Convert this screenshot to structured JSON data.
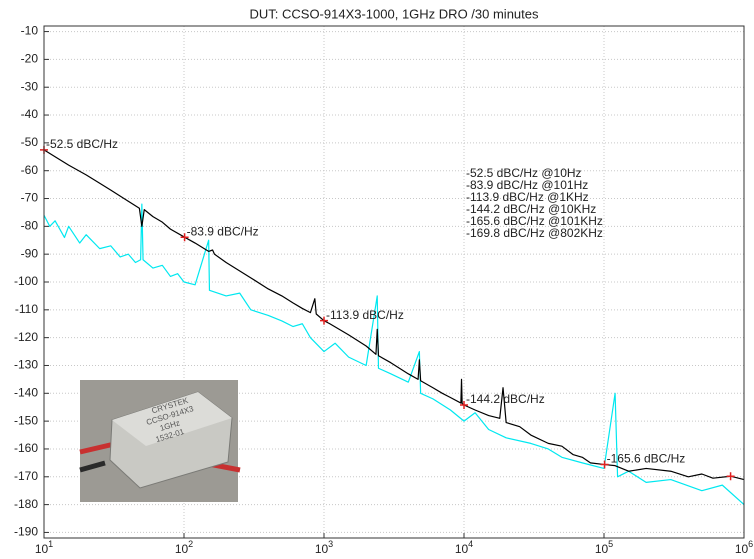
{
  "chart_data": {
    "type": "line",
    "title": "DUT: CCSO-914X3-1000, 1GHz DRO /30 minutes",
    "xscale": "log",
    "grid": true,
    "xlim": [
      10,
      1000000
    ],
    "ylim": [
      -192,
      -8
    ],
    "xticks": [
      {
        "value": 10,
        "label": "10",
        "exponent": "1"
      },
      {
        "value": 100,
        "label": "10",
        "exponent": "2"
      },
      {
        "value": 1000,
        "label": "10",
        "exponent": "3"
      },
      {
        "value": 10000,
        "label": "10",
        "exponent": "4"
      },
      {
        "value": 100000,
        "label": "10",
        "exponent": "5"
      },
      {
        "value": 1000000,
        "label": "10",
        "exponent": "6"
      }
    ],
    "yticks": [
      -10,
      -20,
      -30,
      -40,
      -50,
      -60,
      -70,
      -80,
      -90,
      -100,
      -110,
      -120,
      -130,
      -140,
      -150,
      -160,
      -170,
      -180,
      -190
    ],
    "series": [
      {
        "color": "#00e8f0",
        "x": [
          10,
          11,
          12,
          14,
          15,
          18,
          20,
          25,
          30,
          35,
          40,
          45,
          49,
          50,
          51,
          60,
          70,
          80,
          90,
          100,
          120,
          150,
          152,
          200,
          250,
          300,
          400,
          500,
          600,
          700,
          800,
          1000,
          1200,
          1500,
          2000,
          2400,
          2450,
          3000,
          4000,
          4800,
          4900,
          6000,
          8000,
          10000,
          12000,
          15000,
          20000,
          30000,
          40000,
          50000,
          70000,
          100000,
          120000,
          125000,
          150000,
          200000,
          300000,
          500000,
          700000,
          1000000
        ],
        "values": [
          -76,
          -80,
          -78,
          -84,
          -80,
          -86,
          -83,
          -88,
          -87,
          -91,
          -90,
          -93,
          -92,
          -72,
          -92,
          -95,
          -94,
          -98,
          -97,
          -100,
          -101,
          -85,
          -103,
          -105,
          -104,
          -110,
          -112,
          -114,
          -116,
          -115,
          -120,
          -125,
          -122,
          -127,
          -130,
          -105,
          -131,
          -133,
          -136,
          -125,
          -140,
          -142,
          -146,
          -150,
          -147,
          -153,
          -156,
          -158,
          -160,
          -163,
          -165,
          -167,
          -140,
          -170,
          -168,
          -172,
          -171,
          -175,
          -173,
          -180
        ]
      },
      {
        "color": "#000000",
        "x": [
          10,
          12,
          15,
          20,
          25,
          30,
          40,
          48,
          50,
          52,
          60,
          70,
          80,
          101,
          120,
          150,
          160,
          165,
          200,
          300,
          400,
          500,
          600,
          700,
          800,
          860,
          880,
          1000,
          1100,
          1500,
          2000,
          2350,
          2400,
          2450,
          3000,
          4000,
          4700,
          4800,
          4900,
          6000,
          7000,
          8000,
          9500,
          9600,
          9700,
          10000,
          12000,
          15000,
          18000,
          19000,
          20000,
          25000,
          30000,
          40000,
          50000,
          60000,
          70000,
          80000,
          101000,
          120000,
          150000,
          200000,
          300000,
          400000,
          500000,
          600000,
          802000,
          1000000
        ],
        "values": [
          -52.5,
          -55,
          -58,
          -61.5,
          -64.5,
          -67,
          -71,
          -73.5,
          -80,
          -74,
          -76.5,
          -78.5,
          -81,
          -83.9,
          -86,
          -89,
          -88.5,
          -90,
          -93,
          -98.5,
          -102.5,
          -105,
          -107.5,
          -109.5,
          -111,
          -106,
          -111.5,
          -113.9,
          -115,
          -119,
          -123,
          -126,
          -117,
          -126.5,
          -129,
          -133,
          -135,
          -128,
          -135.5,
          -138,
          -140,
          -141.5,
          -143.5,
          -135,
          -143.7,
          -144.2,
          -146,
          -148,
          -149,
          -138,
          -150.5,
          -152,
          -155,
          -158,
          -159,
          -162,
          -163,
          -165,
          -165.6,
          -166,
          -168,
          -167,
          -168,
          -170,
          -169,
          -170.5,
          -169.8,
          -171
        ]
      }
    ],
    "annotations": [
      {
        "x": 10,
        "y": -52.5,
        "label": "-52.5 dBC/Hz"
      },
      {
        "x": 101,
        "y": -83.9,
        "label": "-83.9 dBC/Hz"
      },
      {
        "x": 1000,
        "y": -113.9,
        "label": "-113.9 dBC/Hz"
      },
      {
        "x": 10000,
        "y": -144.2,
        "label": "-144.2 dBC/Hz"
      },
      {
        "x": 101000,
        "y": -165.6,
        "label": "-165.6 dBC/Hz"
      },
      {
        "x": 802000,
        "y": -169.8
      }
    ],
    "annotation_color": "#e02020",
    "info_lines": [
      "-52.5 dBC/Hz @10Hz",
      "-83.9 dBC/Hz @101Hz",
      "-113.9 dBC/Hz @1KHz",
      "-144.2 dBC/Hz @10KHz",
      "-165.6 dBC/Hz @101KHz",
      "-169.8 dBC/Hz @802KHz"
    ],
    "inset_text": [
      "CRYSTEK",
      "CCSO-914X3",
      "1GHz",
      "1532-01"
    ]
  }
}
